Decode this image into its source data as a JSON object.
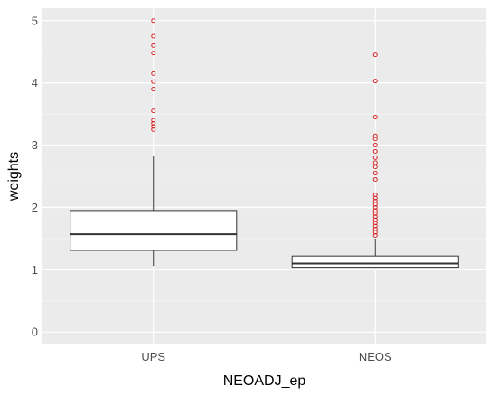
{
  "chart_data": {
    "type": "boxplot",
    "xlabel": "NEOADJ_ep",
    "ylabel": "weights",
    "categories": [
      "UPS",
      "NEOS"
    ],
    "ylim": [
      -0.2,
      5.2
    ],
    "yticks": [
      0,
      1,
      2,
      3,
      4,
      5
    ],
    "grid": true,
    "boxes": [
      {
        "category": "UPS",
        "whisker_low": 1.06,
        "q1": 1.31,
        "median": 1.57,
        "q3": 1.95,
        "whisker_high": 2.82,
        "outliers": [
          3.25,
          3.3,
          3.35,
          3.4,
          3.55,
          3.9,
          4.02,
          4.15,
          4.48,
          4.6,
          4.75,
          5.0
        ]
      },
      {
        "category": "NEOS",
        "whisker_low": 1.03,
        "q1": 1.04,
        "median": 1.1,
        "q3": 1.22,
        "whisker_high": 1.5,
        "outliers": [
          1.55,
          1.6,
          1.65,
          1.7,
          1.75,
          1.8,
          1.85,
          1.9,
          1.95,
          2.0,
          2.05,
          2.1,
          2.15,
          2.2,
          2.45,
          2.55,
          2.65,
          2.72,
          2.8,
          2.9,
          3.0,
          3.1,
          3.15,
          3.45,
          4.03,
          4.45
        ]
      }
    ],
    "colors": {
      "panel": "#ebebeb",
      "grid_major": "#ffffff",
      "grid_minor": "#f5f5f5",
      "box_fill": "#ffffff",
      "box_line": "#333333",
      "outlier": "#d62728"
    }
  }
}
